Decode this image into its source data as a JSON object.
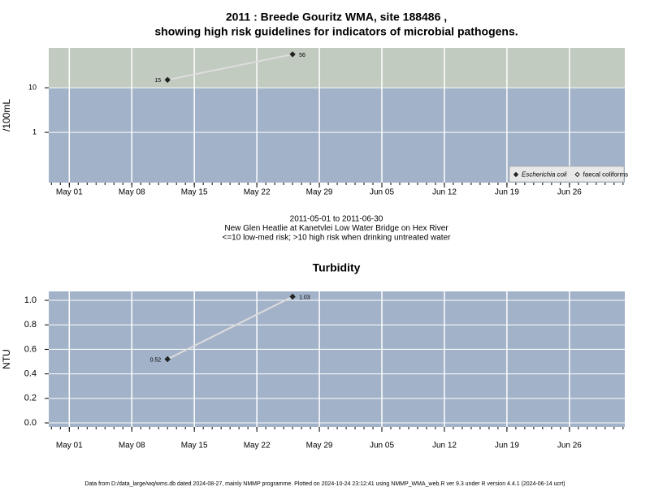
{
  "chart_data": [
    {
      "type": "line",
      "title": [
        "2011 : Breede Gouritz WMA, site 188486 ,",
        "showing high risk guidelines for indicators of microbial pathogens."
      ],
      "subtitle": [
        "2011-05-01 to 2011-06-30",
        "New Glen Heatlie at Kanetvlei Low Water Bridge on Hex River",
        "<=10 low-med risk; >10 high risk when drinking untreated water"
      ],
      "ylabel": "/100mL",
      "log_y": true,
      "risk_threshold": 10,
      "risk_color": "#c2cbbf",
      "background_color": "#a2b2c8",
      "grid": true,
      "legend": "lower right",
      "x": [
        12,
        26
      ],
      "xlim": [
        -1.3,
        63.2
      ],
      "xticks": [
        {
          "value": 1,
          "label": "May 01"
        },
        {
          "value": 8,
          "label": "May 08"
        },
        {
          "value": 15,
          "label": "May 15"
        },
        {
          "value": 22,
          "label": "May 22"
        },
        {
          "value": 29,
          "label": "May 29"
        },
        {
          "value": 36,
          "label": "Jun 05"
        },
        {
          "value": 43,
          "label": "Jun 12"
        },
        {
          "value": 50,
          "label": "Jun 19"
        },
        {
          "value": 57,
          "label": "Jun 26"
        }
      ],
      "ylim": [
        0.075,
        78
      ],
      "yticks": [
        1,
        10
      ],
      "series": [
        {
          "name": "Escherichia coli",
          "color": "#222222",
          "line_color": "#dddddd",
          "values": [
            15,
            56
          ]
        },
        {
          "name": "faecal coliforms",
          "color": "#ffffff",
          "line_color": "#dddddd",
          "values": [
            null,
            null
          ]
        }
      ]
    },
    {
      "type": "line",
      "title": [
        "Turbidity"
      ],
      "ylabel": "NTU",
      "log_y": false,
      "background_color": "#a2b2c8",
      "grid": true,
      "x": [
        12,
        26
      ],
      "xlim": [
        -1.3,
        63.2
      ],
      "xticks": [
        {
          "value": 1,
          "label": "May 01"
        },
        {
          "value": 8,
          "label": "May 08"
        },
        {
          "value": 15,
          "label": "May 15"
        },
        {
          "value": 22,
          "label": "May 22"
        },
        {
          "value": 29,
          "label": "May 29"
        },
        {
          "value": 36,
          "label": "Jun 05"
        },
        {
          "value": 43,
          "label": "Jun 12"
        },
        {
          "value": 50,
          "label": "Jun 19"
        },
        {
          "value": 57,
          "label": "Jun 26"
        }
      ],
      "ylim": [
        -0.033,
        1.073
      ],
      "yticks": [
        {
          "value": 0,
          "label": "0.0"
        },
        0.2,
        0.4,
        0.6,
        0.8,
        {
          "value": 1,
          "label": "1.0"
        }
      ],
      "series": [
        {
          "name": "Turbidity",
          "color": "#222222",
          "line_color": "#dddddd",
          "values": [
            0.52,
            1.03
          ]
        }
      ]
    }
  ],
  "footer": "Data from D:/data_large/wq/wms.db dated 2024-08-27, mainly NMMP programme. Plotted on 2024-10-24 23:12:41 using NMMP_WMA_web.R ver 9.3 under R version 4.4.1 (2024-06-14 ucrt)"
}
